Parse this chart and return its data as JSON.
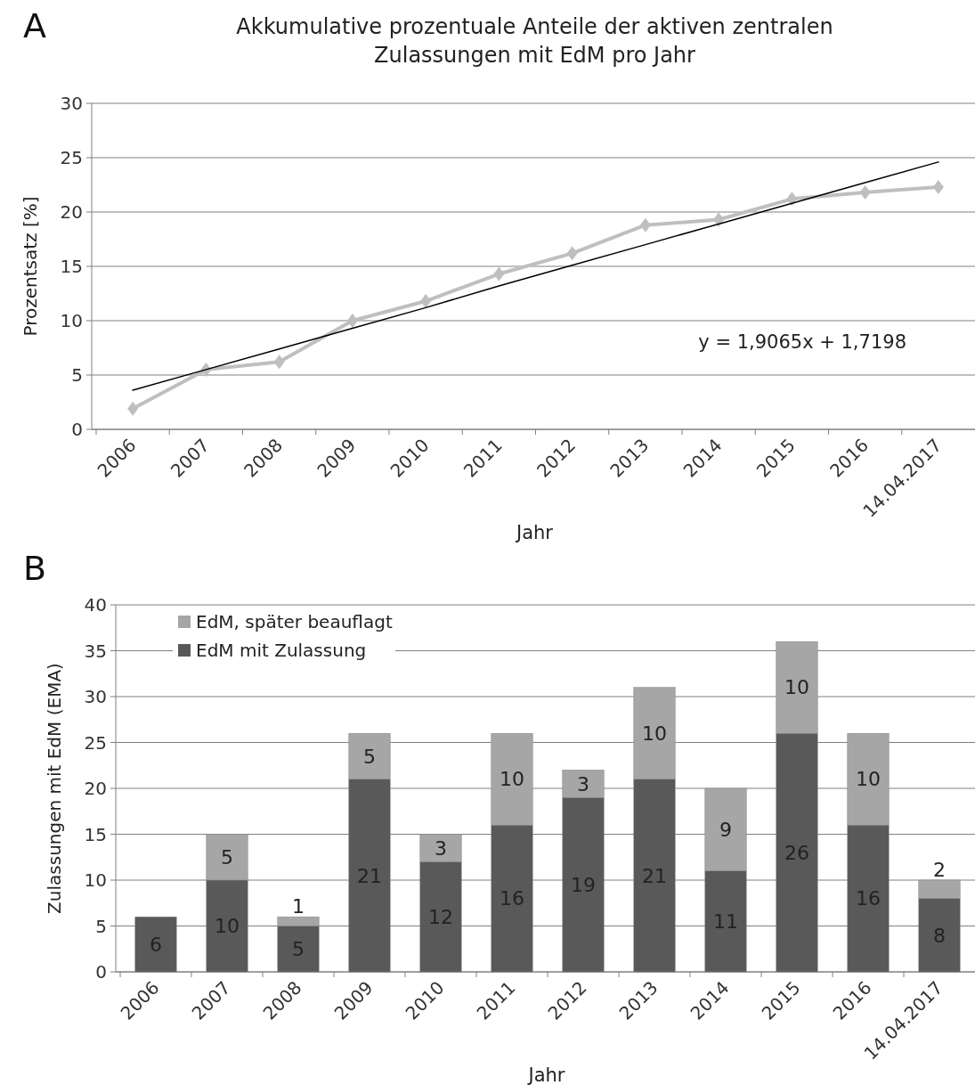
{
  "chart_data": [
    {
      "type": "line",
      "title": "Akkumulative prozentuale Anteile der aktiven zentralen Zulassungen mit EdM pro Jahr",
      "xlabel": "Jahr",
      "ylabel": "Prozentsatz [%]",
      "categories": [
        "2006",
        "2007",
        "2008",
        "2009",
        "2010",
        "2011",
        "2012",
        "2013",
        "2014",
        "2015",
        "2016",
        "14.04.2017"
      ],
      "series": [
        {
          "color": "#bfbfbf",
          "marker": "diamond",
          "values": [
            1.9,
            5.5,
            6.2,
            10.0,
            11.8,
            14.3,
            16.2,
            18.8,
            19.3,
            21.2,
            21.8,
            22.3
          ]
        },
        {
          "type": "line",
          "color": "#000000",
          "marker": "none",
          "values": [
            3.6,
            5.5,
            7.4,
            9.3,
            11.2,
            13.2,
            15.1,
            17.0,
            18.9,
            20.8,
            22.7,
            24.6
          ]
        }
      ],
      "ylim": [
        0,
        30
      ],
      "yticks": [
        0,
        5,
        10,
        15,
        20,
        25,
        30
      ],
      "grid": "y",
      "legend": false,
      "annotations": [
        "A",
        "y = 1,9065x + 1,7198"
      ]
    },
    {
      "type": "bar",
      "stacked": true,
      "xlabel": "Jahr",
      "ylabel": "Zulassungen mit EdM (EMA)",
      "categories": [
        "2006",
        "2007",
        "2008",
        "2009",
        "2010",
        "2011",
        "2012",
        "2013",
        "2014",
        "2015",
        "2016",
        "14.04.2017"
      ],
      "series": [
        {
          "name": "EdM mit Zulassung",
          "color": "#595959",
          "values": [
            6,
            10,
            5,
            21,
            12,
            16,
            19,
            21,
            11,
            26,
            16,
            8
          ]
        },
        {
          "name": "EdM, später beauflagt",
          "color": "#a6a6a6",
          "values": [
            null,
            5,
            1,
            5,
            3,
            10,
            3,
            10,
            9,
            10,
            10,
            2
          ]
        }
      ],
      "ylim": [
        0,
        40
      ],
      "yticks": [
        0,
        5,
        10,
        15,
        20,
        25,
        30,
        35,
        40
      ],
      "grid": "y",
      "legend": "top left",
      "data_labels": true,
      "annotations": [
        "B"
      ]
    }
  ]
}
